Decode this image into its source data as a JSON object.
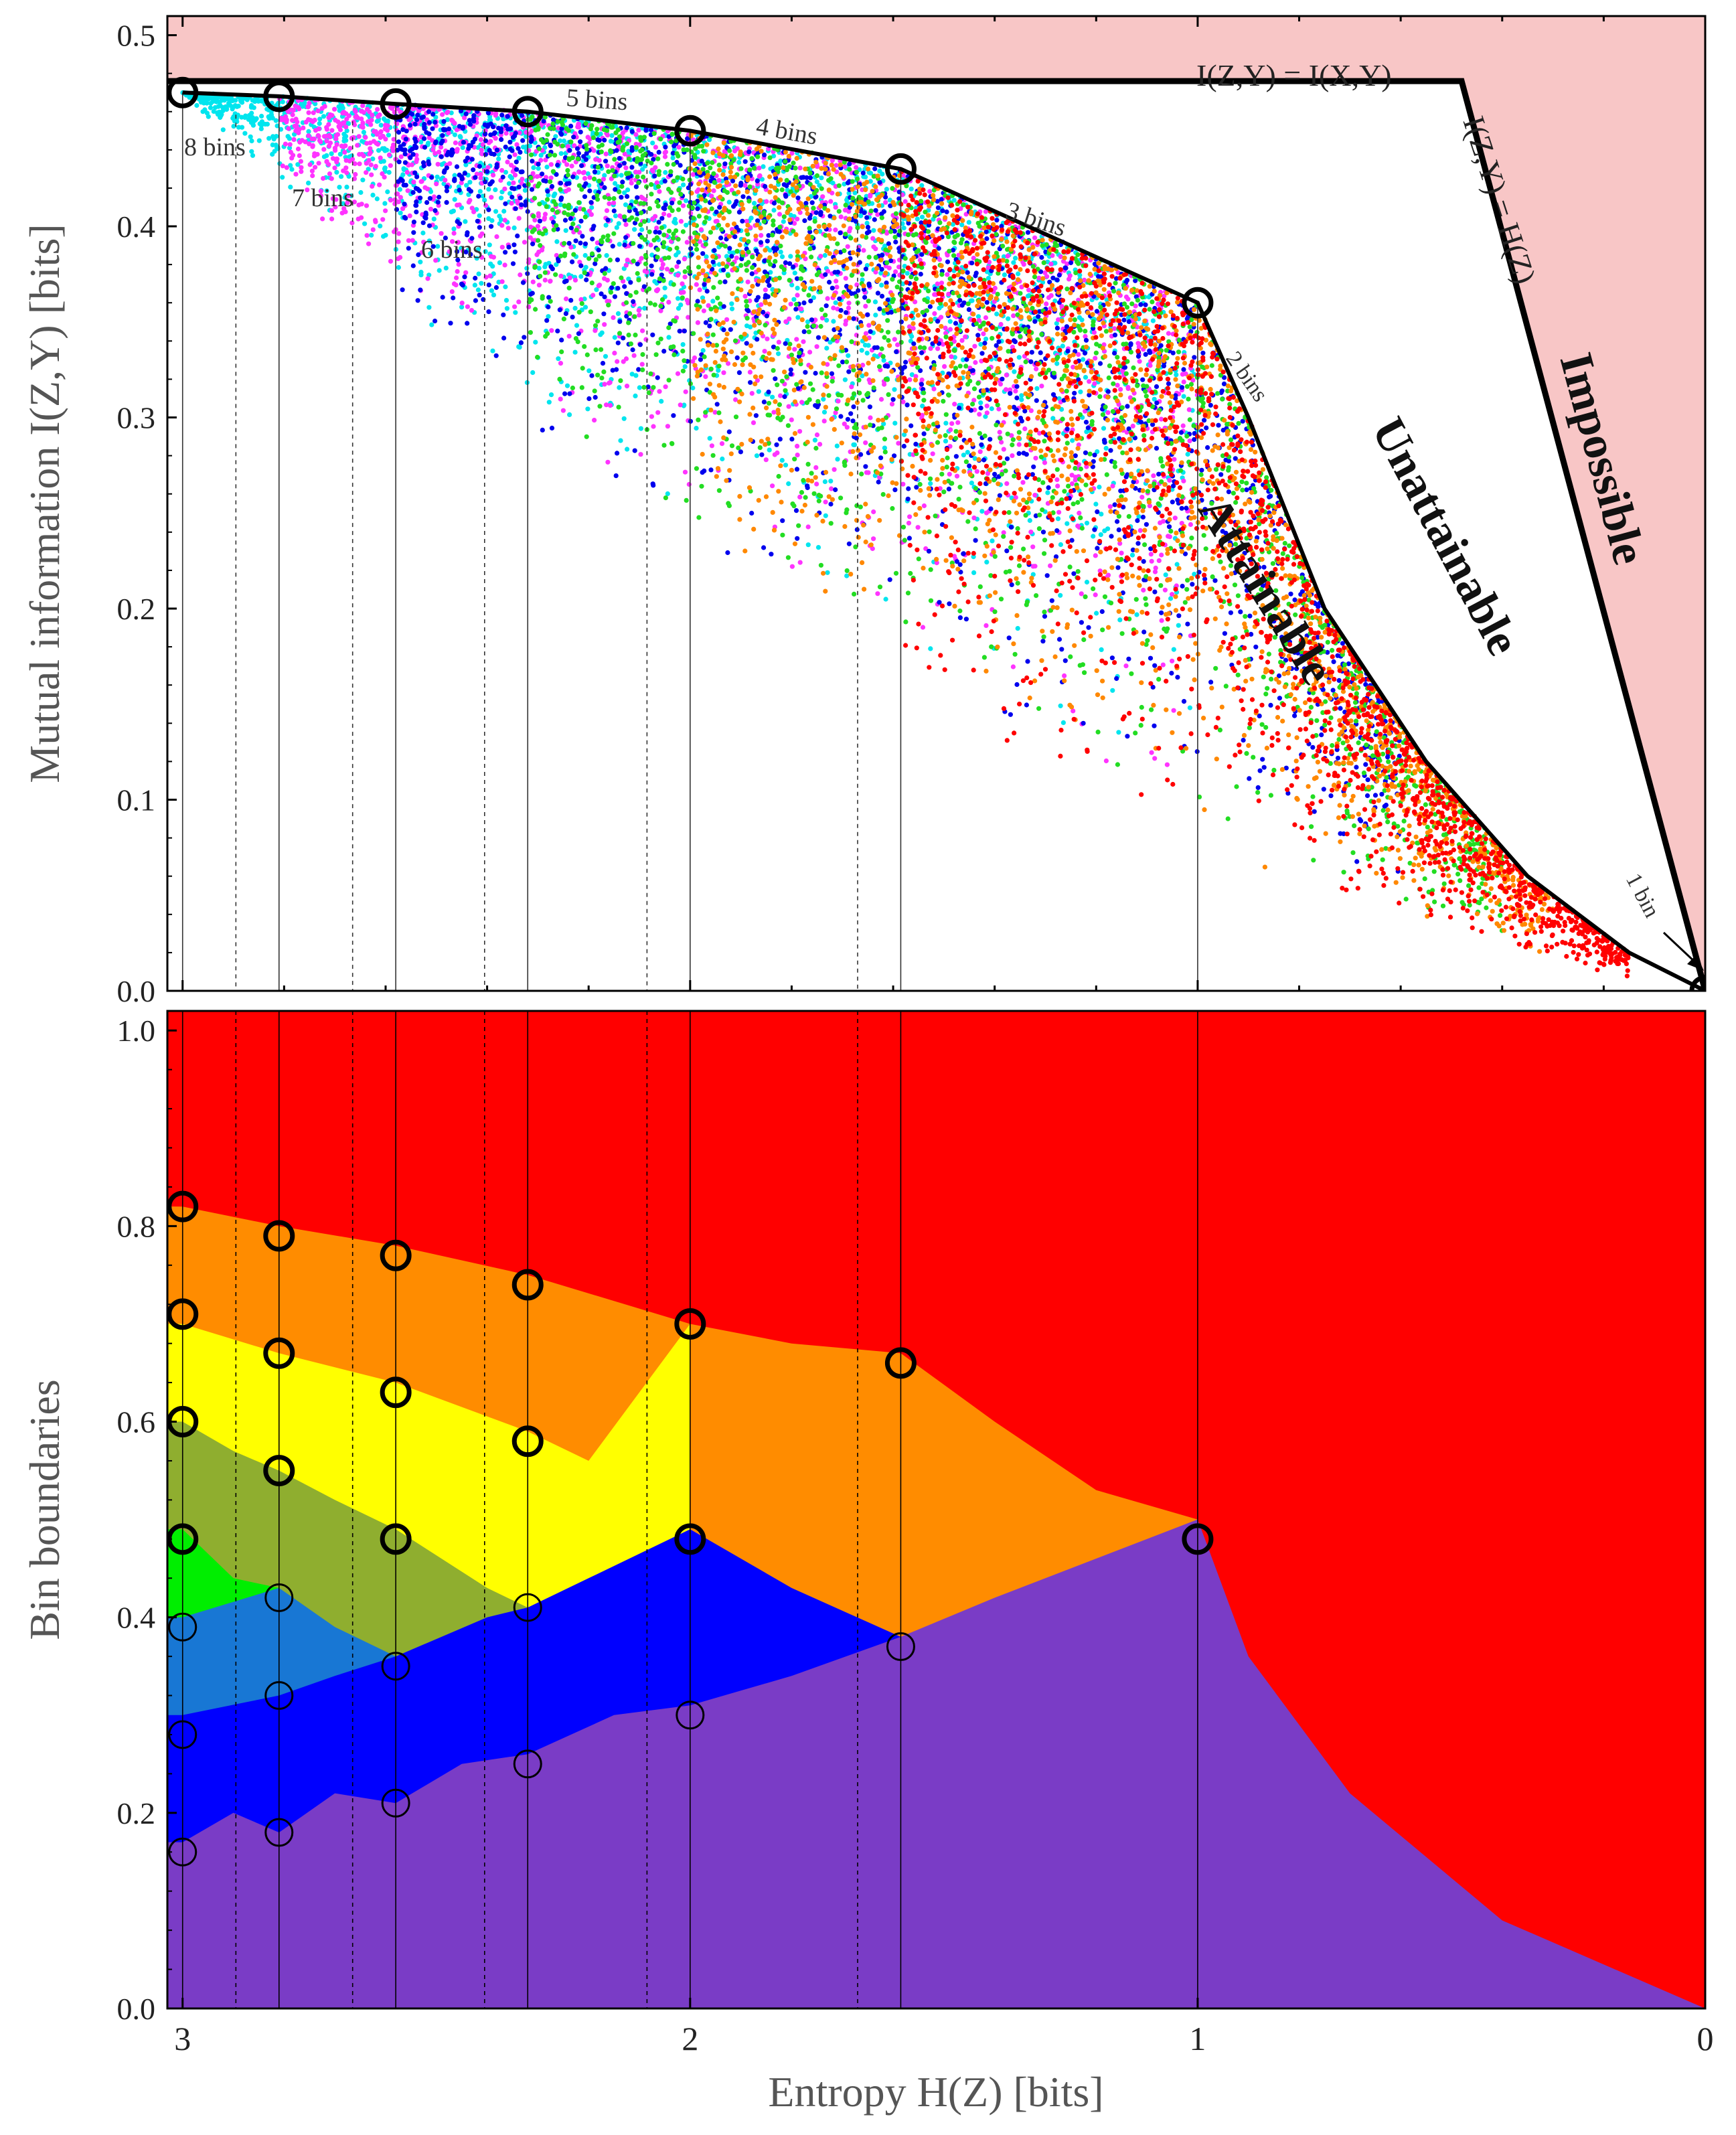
{
  "chart_data": [
    {
      "type": "scatter",
      "title": "",
      "xlabel": "",
      "ylabel": "Mutual information I(Z,Y) [bits]",
      "xlim": [
        3.03,
        0
      ],
      "ylim": [
        0,
        0.51
      ],
      "x_ticks": [
        3,
        2,
        1,
        0
      ],
      "y_ticks": [
        0.0,
        0.1,
        0.2,
        0.3,
        0.4,
        0.5
      ],
      "y_tick_labels": [
        "0.0",
        "0.1",
        "0.2",
        "0.3",
        "0.4",
        "0.5"
      ],
      "impossible_boundary": {
        "label": "I(Z,Y) = I(X,Y)",
        "diagonal_label": "I(Z,Y) = H(Z)",
        "points": [
          [
            3.03,
            0.476
          ],
          [
            0.48,
            0.476
          ],
          [
            0,
            0
          ]
        ]
      },
      "frontier": {
        "points": [
          [
            3.0,
            0.47
          ],
          [
            2.81,
            0.468
          ],
          [
            2.58,
            0.464
          ],
          [
            2.32,
            0.46
          ],
          [
            2.0,
            0.45
          ],
          [
            1.585,
            0.43
          ],
          [
            1.0,
            0.36
          ],
          [
            0.9,
            0.3
          ],
          [
            0.75,
            0.2
          ],
          [
            0.55,
            0.12
          ],
          [
            0.35,
            0.06
          ],
          [
            0.15,
            0.02
          ],
          [
            0,
            0
          ]
        ],
        "optimal_points": [
          {
            "entropy": 3.0,
            "mi": 0.47
          },
          {
            "entropy": 2.81,
            "mi": 0.468
          },
          {
            "entropy": 2.58,
            "mi": 0.464
          },
          {
            "entropy": 2.32,
            "mi": 0.46
          },
          {
            "entropy": 2.0,
            "mi": 0.45
          },
          {
            "entropy": 1.585,
            "mi": 0.43
          },
          {
            "entropy": 1.0,
            "mi": 0.36
          },
          {
            "entropy": 0,
            "mi": 0.0
          }
        ]
      },
      "series": [
        {
          "name": "8 bins",
          "color": "#00e5ee",
          "entropy_range": [
            1.0,
            3.0
          ]
        },
        {
          "name": "7 bins",
          "color": "#ff33ff",
          "entropy_range": [
            1.0,
            2.81
          ]
        },
        {
          "name": "6 bins",
          "color": "#0000ee",
          "entropy_range": [
            0.6,
            2.58
          ]
        },
        {
          "name": "5 bins",
          "color": "#22dd22",
          "entropy_range": [
            0.4,
            2.32
          ]
        },
        {
          "name": "4 bins",
          "color": "#ff8800",
          "entropy_range": [
            0.3,
            2.0
          ]
        },
        {
          "name": "3 bins",
          "color": "#ff0000",
          "entropy_range": [
            0.15,
            1.585
          ]
        }
      ],
      "bin_labels": [
        "8 bins",
        "7 bins",
        "6 bins",
        "5 bins",
        "4 bins",
        "3 bins",
        "2 bins",
        "1 bin"
      ],
      "region_labels": [
        "Attainable",
        "Unattainable",
        "Impossible"
      ]
    },
    {
      "type": "area",
      "title": "",
      "xlabel": "Entropy H(Z) [bits]",
      "ylabel": "Bin boundaries",
      "xlim": [
        3.03,
        0
      ],
      "ylim": [
        0,
        1.02
      ],
      "x_ticks": [
        3,
        2,
        1,
        0
      ],
      "x_tick_labels": [
        "3",
        "2",
        "1",
        "0"
      ],
      "y_ticks": [
        0.0,
        0.2,
        0.4,
        0.6,
        0.8,
        1.0
      ],
      "y_tick_labels": [
        "0.0",
        "0.2",
        "0.4",
        "0.6",
        "0.8",
        "1.0"
      ],
      "entropies": [
        3.0,
        2.81,
        2.58,
        2.32,
        2.0,
        1.585,
        1.0,
        0
      ],
      "bands": [
        {
          "name": "bin 1",
          "color": "#7a3cc6"
        },
        {
          "name": "bin 2",
          "color": "#0000ff"
        },
        {
          "name": "bin 3",
          "color": "#1877d4"
        },
        {
          "name": "bin 4",
          "color": "#00ee00"
        },
        {
          "name": "bin 5",
          "color": "#8fae2f"
        },
        {
          "name": "bin 6",
          "color": "#ffff00"
        },
        {
          "name": "bin 7",
          "color": "#ff8c00"
        },
        {
          "name": "bin 8",
          "color": "#ff0000"
        }
      ],
      "boundaries": [
        {
          "points": [
            [
              3.0,
              0.17
            ],
            [
              2.9,
              0.2
            ],
            [
              2.81,
              0.18
            ],
            [
              2.7,
              0.22
            ],
            [
              2.58,
              0.21
            ],
            [
              2.45,
              0.25
            ],
            [
              2.32,
              0.26
            ],
            [
              2.15,
              0.3
            ],
            [
              2.0,
              0.31
            ],
            [
              1.8,
              0.34
            ],
            [
              1.585,
              0.38
            ],
            [
              1.4,
              0.42
            ],
            [
              1.0,
              0.5
            ],
            [
              0.9,
              0.36
            ],
            [
              0.7,
              0.22
            ],
            [
              0.4,
              0.09
            ],
            [
              0,
              0
            ]
          ]
        },
        {
          "points": [
            [
              3.0,
              0.3
            ],
            [
              2.81,
              0.32
            ],
            [
              2.7,
              0.34
            ],
            [
              2.58,
              0.36
            ],
            [
              2.4,
              0.4
            ],
            [
              2.32,
              0.41
            ],
            [
              2.2,
              0.44
            ],
            [
              2.0,
              0.49
            ],
            [
              1.8,
              0.43
            ],
            [
              1.585,
              0.38
            ]
          ]
        },
        {
          "points": [
            [
              3.0,
              0.4
            ],
            [
              2.81,
              0.43
            ],
            [
              2.7,
              0.39
            ],
            [
              2.58,
              0.36
            ]
          ]
        },
        {
          "points": [
            [
              3.0,
              0.49
            ],
            [
              2.9,
              0.44
            ],
            [
              2.81,
              0.43
            ]
          ]
        },
        {
          "points": [
            [
              3.0,
              0.6
            ],
            [
              2.9,
              0.57
            ],
            [
              2.81,
              0.55
            ],
            [
              2.7,
              0.52
            ],
            [
              2.58,
              0.49
            ],
            [
              2.4,
              0.43
            ],
            [
              2.32,
              0.41
            ]
          ]
        },
        {
          "points": [
            [
              3.0,
              0.7
            ],
            [
              2.81,
              0.67
            ],
            [
              2.58,
              0.64
            ],
            [
              2.32,
              0.59
            ],
            [
              2.2,
              0.56
            ],
            [
              2.0,
              0.7
            ]
          ]
        },
        {
          "points": [
            [
              3.0,
              0.82
            ],
            [
              2.81,
              0.8
            ],
            [
              2.58,
              0.78
            ],
            [
              2.32,
              0.75
            ],
            [
              2.0,
              0.7
            ],
            [
              1.8,
              0.68
            ],
            [
              1.585,
              0.67
            ],
            [
              1.4,
              0.6
            ],
            [
              1.2,
              0.53
            ],
            [
              1.0,
              0.5
            ]
          ]
        }
      ],
      "points_at_optima": [
        {
          "entropy": 3.0,
          "values": [
            0.16,
            0.28,
            0.39,
            0.48,
            0.6,
            0.71,
            0.82
          ]
        },
        {
          "entropy": 2.81,
          "values": [
            0.18,
            0.32,
            0.42,
            0.55,
            0.67,
            0.79
          ]
        },
        {
          "entropy": 2.58,
          "values": [
            0.21,
            0.35,
            0.48,
            0.63,
            0.77
          ]
        },
        {
          "entropy": 2.32,
          "values": [
            0.25,
            0.41,
            0.58,
            0.74
          ]
        },
        {
          "entropy": 2.0,
          "values": [
            0.3,
            0.48,
            0.7
          ]
        },
        {
          "entropy": 1.585,
          "values": [
            0.37,
            0.66
          ]
        },
        {
          "entropy": 1.0,
          "values": [
            0.48
          ]
        }
      ]
    }
  ]
}
